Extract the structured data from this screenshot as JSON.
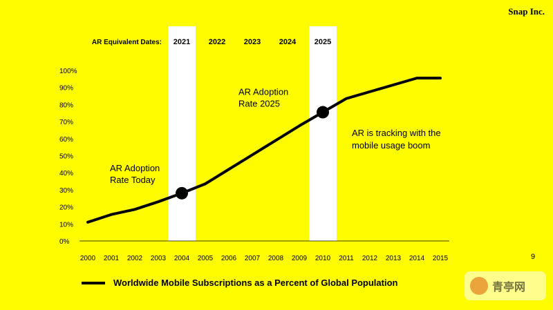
{
  "brand": "Snap Inc.",
  "page_number": "9",
  "legend_label": "Worldwide Mobile Subscriptions as a Percent of Global Population",
  "watermark": "青亭网",
  "colors": {
    "background": "#FFFC00",
    "line": "#000000",
    "highlight_band": "#FFFFFF"
  },
  "chart_data": {
    "type": "line",
    "title": "",
    "xlabel": "",
    "ylabel": "",
    "ylim": [
      0,
      100
    ],
    "x": [
      "2000",
      "2001",
      "2002",
      "2003",
      "2004",
      "2005",
      "2006",
      "2007",
      "2008",
      "2009",
      "2010",
      "2011",
      "2012",
      "2013",
      "2014",
      "2015"
    ],
    "y_ticks": [
      "0%",
      "10%",
      "20%",
      "30%",
      "40%",
      "50%",
      "60%",
      "70%",
      "80%",
      "90%",
      "100%"
    ],
    "series": [
      {
        "name": "Worldwide Mobile Subscriptions as a Percent of Global Population",
        "values": [
          11,
          15.5,
          18.5,
          23,
          28,
          33.5,
          42,
          50.5,
          59,
          67.5,
          75.5,
          83.5,
          87.5,
          91.5,
          95.5,
          95.5
        ]
      }
    ],
    "ar_dates_label": "AR Equivalent Dates:",
    "ar_dates": [
      {
        "year": "2021",
        "x": "2004",
        "highlight": true
      },
      {
        "year": "2022",
        "x": "2005.5",
        "highlight": false
      },
      {
        "year": "2023",
        "x": "2007",
        "highlight": false
      },
      {
        "year": "2024",
        "x": "2008.5",
        "highlight": false
      },
      {
        "year": "2025",
        "x": "2010",
        "highlight": true
      }
    ],
    "markers": [
      {
        "x": "2004",
        "y": 28,
        "label_line1": "AR Adoption",
        "label_line2": "Rate Today"
      },
      {
        "x": "2010",
        "y": 75.5,
        "label_line1": "AR Adoption",
        "label_line2": "Rate 2025"
      }
    ],
    "annotation": {
      "line1": "AR is tracking with the",
      "line2": "mobile usage boom"
    }
  }
}
